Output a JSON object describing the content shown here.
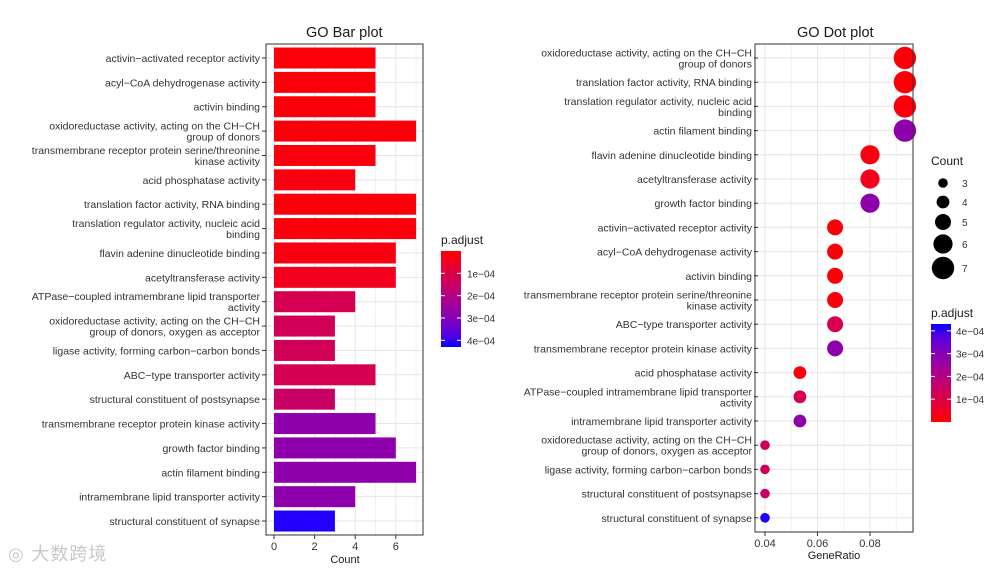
{
  "watermark": "大数跨境",
  "chart_data": [
    {
      "type": "bar",
      "orientation": "horizontal",
      "title": "GO Bar plot",
      "xlabel": "Count",
      "ylabel": "",
      "xlim": [
        0,
        7.3
      ],
      "xticks": [
        0,
        2,
        4,
        6
      ],
      "grid": true,
      "categories": [
        [
          "activin−activated receptor activity"
        ],
        [
          "acyl−CoA dehydrogenase activity"
        ],
        [
          "activin binding"
        ],
        [
          "oxidoreductase activity, acting on the CH−CH",
          "group of donors"
        ],
        [
          "transmembrane receptor protein serine/threonine",
          "kinase activity"
        ],
        [
          "acid phosphatase activity"
        ],
        [
          "translation factor activity, RNA binding"
        ],
        [
          "translation regulator activity, nucleic acid",
          "binding"
        ],
        [
          "flavin adenine dinucleotide binding"
        ],
        [
          "acetyltransferase activity"
        ],
        [
          "ATPase−coupled intramembrane lipid transporter",
          "activity"
        ],
        [
          "oxidoreductase activity, acting on the CH−CH",
          "group of donors, oxygen as acceptor"
        ],
        [
          "ligase activity, forming carbon−carbon bonds"
        ],
        [
          "ABC−type transporter activity"
        ],
        [
          "structural constituent of postsynapse"
        ],
        [
          "transmembrane receptor protein kinase activity"
        ],
        [
          "growth factor binding"
        ],
        [
          "actin filament binding"
        ],
        [
          "intramembrane lipid transporter activity"
        ],
        [
          "structural constituent of synapse"
        ]
      ],
      "values": [
        5,
        5,
        5,
        7,
        5,
        4,
        7,
        7,
        6,
        6,
        4,
        3,
        3,
        5,
        3,
        5,
        6,
        7,
        4,
        3
      ],
      "p_adjust": [
        1e-05,
        1e-05,
        1e-05,
        1e-05,
        1.5e-05,
        2e-05,
        1e-05,
        1.2e-05,
        2e-05,
        4e-05,
        0.00012,
        0.00013,
        0.00013,
        0.00012,
        0.00015,
        0.00028,
        0.00028,
        0.00028,
        0.00028,
        0.00042
      ],
      "legend": {
        "title": "p.adjust",
        "placement": "right",
        "ticks": [
          "1e−04",
          "2e−04",
          "3e−04",
          "4e−04"
        ],
        "tick_values": [
          0.0001,
          0.0002,
          0.0003,
          0.0004
        ],
        "range": [
          0,
          0.00043
        ],
        "direction": "low-top"
      }
    },
    {
      "type": "scatter",
      "title": "GO Dot plot",
      "xlabel": "GeneRatio",
      "ylabel": "",
      "xlim": [
        0.036,
        0.0955
      ],
      "xticks": [
        "0.04",
        "0.06",
        "0.08"
      ],
      "xtick_values": [
        0.04,
        0.06,
        0.08
      ],
      "grid": true,
      "categories": [
        [
          "oxidoreductase activity, acting on the CH−CH",
          "group of donors"
        ],
        [
          "translation factor activity, RNA binding"
        ],
        [
          "translation regulator activity, nucleic acid",
          "binding"
        ],
        [
          "actin filament binding"
        ],
        [
          "flavin adenine dinucleotide binding"
        ],
        [
          "acetyltransferase activity"
        ],
        [
          "growth factor binding"
        ],
        [
          "activin−activated receptor activity"
        ],
        [
          "acyl−CoA dehydrogenase activity"
        ],
        [
          "activin binding"
        ],
        [
          "transmembrane receptor protein serine/threonine",
          "kinase activity"
        ],
        [
          "ABC−type transporter activity"
        ],
        [
          "transmembrane receptor protein kinase activity"
        ],
        [
          "acid phosphatase activity"
        ],
        [
          "ATPase−coupled intramembrane lipid transporter",
          "activity"
        ],
        [
          "intramembrane lipid transporter activity"
        ],
        [
          "oxidoreductase activity, acting on the CH−CH",
          "group of donors, oxygen as acceptor"
        ],
        [
          "ligase activity, forming carbon−carbon bonds"
        ],
        [
          "structural constituent of postsynapse"
        ],
        [
          "structural constituent of synapse"
        ]
      ],
      "gene_ratio": [
        0.0933,
        0.0933,
        0.0933,
        0.0933,
        0.08,
        0.08,
        0.08,
        0.0667,
        0.0667,
        0.0667,
        0.0667,
        0.0667,
        0.0667,
        0.0533,
        0.0533,
        0.0533,
        0.04,
        0.04,
        0.04,
        0.04
      ],
      "count": [
        7,
        7,
        7,
        7,
        6,
        6,
        6,
        5,
        5,
        5,
        5,
        5,
        5,
        4,
        4,
        4,
        3,
        3,
        3,
        3
      ],
      "p_adjust": [
        1e-05,
        1e-05,
        1.2e-05,
        0.00028,
        2e-05,
        4e-05,
        0.00028,
        1e-05,
        1e-05,
        1e-05,
        1.5e-05,
        0.00012,
        0.00028,
        2e-05,
        0.00012,
        0.00028,
        0.00013,
        0.00013,
        0.00015,
        0.00042
      ],
      "size_legend": {
        "title": "Count",
        "values": [
          "3",
          "4",
          "5",
          "6",
          "7"
        ]
      },
      "legend": {
        "title": "p.adjust",
        "placement": "right",
        "ticks": [
          "4e−04",
          "3e−04",
          "2e−04",
          "1e−04"
        ],
        "tick_values": [
          0.0004,
          0.0003,
          0.0002,
          0.0001
        ],
        "range": [
          0,
          0.00043
        ],
        "direction": "low-bottom"
      }
    }
  ]
}
